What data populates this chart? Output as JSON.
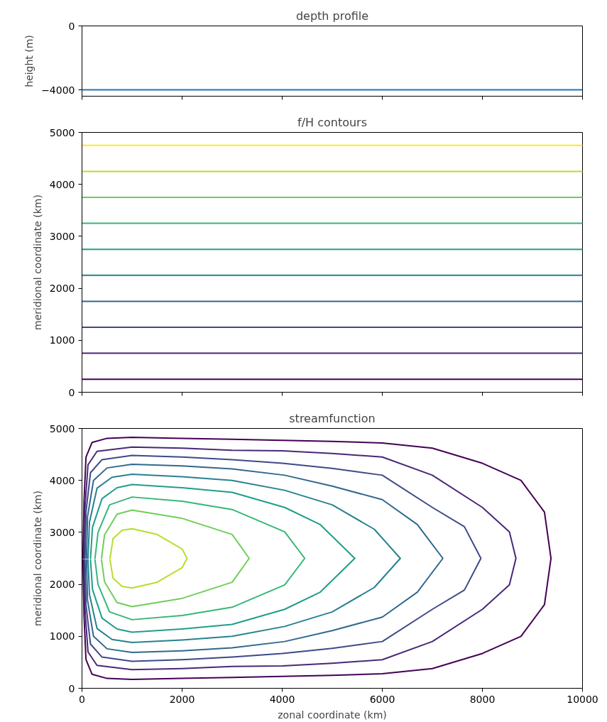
{
  "chart_data": [
    {
      "type": "line",
      "title": "depth profile",
      "ylabel": "height (m)",
      "xlim": [
        0,
        10000
      ],
      "ylim": [
        -4400,
        0
      ],
      "xticks": [
        0,
        2000,
        4000,
        6000,
        8000,
        10000
      ],
      "yticks": [
        0,
        {
          "value": -4000,
          "label": "−4000"
        }
      ],
      "tick_labels": "y",
      "ref_lines": [
        {
          "axis": "y",
          "value": -4000,
          "color": "#1f77b4"
        }
      ]
    },
    {
      "type": "line",
      "title": "f/H contours",
      "ylabel": "meridional coordinate (km)",
      "x": [
        0,
        10000
      ],
      "xlim": [
        0,
        10000
      ],
      "ylim": [
        0,
        5000
      ],
      "xticks": [
        0,
        2000,
        4000,
        6000,
        8000,
        10000
      ],
      "yticks": [
        0,
        1000,
        2000,
        3000,
        4000,
        5000
      ],
      "tick_labels": "y",
      "series": [
        {
          "color": "#440154",
          "values": [
            250,
            250
          ]
        },
        {
          "color": "#482878",
          "values": [
            750,
            750
          ]
        },
        {
          "color": "#3e4989",
          "values": [
            1250,
            1250
          ]
        },
        {
          "color": "#31688e",
          "values": [
            1750,
            1750
          ]
        },
        {
          "color": "#26828e",
          "values": [
            2250,
            2250
          ]
        },
        {
          "color": "#1f9e89",
          "values": [
            2750,
            2750
          ]
        },
        {
          "color": "#35b779",
          "values": [
            3250,
            3250
          ]
        },
        {
          "color": "#6ece58",
          "values": [
            3750,
            3750
          ]
        },
        {
          "color": "#b5de2b",
          "values": [
            4250,
            4250
          ]
        },
        {
          "color": "#fde725",
          "values": [
            4750,
            4750
          ]
        }
      ]
    },
    {
      "type": "line",
      "title": "streamfunction",
      "xlabel": "zonal coordinate (km)",
      "ylabel": "meridional coordinate (km)",
      "xlim": [
        0,
        10000
      ],
      "ylim": [
        0,
        5000
      ],
      "xticks": [
        0,
        2000,
        4000,
        6000,
        8000,
        10000
      ],
      "yticks": [
        0,
        1000,
        2000,
        3000,
        4000,
        5000
      ],
      "series": [
        {
          "color": "#440154",
          "x": [
            20,
            40,
            80,
            200,
            500,
            1000,
            2000,
            3000,
            4000,
            5000,
            6000,
            7000,
            8000,
            8770,
            9240,
            9370,
            9240,
            8770,
            8000,
            7000,
            6000,
            5000,
            4000,
            3000,
            2000,
            1000,
            500,
            200,
            80,
            40,
            20
          ],
          "values": [
            2500,
            3600,
            4450,
            4730,
            4810,
            4830,
            4810,
            4790,
            4770,
            4750,
            4720,
            4620,
            4330,
            4000,
            3390,
            2500,
            1610,
            1000,
            670,
            380,
            280,
            250,
            230,
            210,
            190,
            170,
            190,
            270,
            550,
            1400,
            2470
          ]
        },
        {
          "color": "#482878",
          "x": [
            40,
            60,
            120,
            300,
            1000,
            2000,
            3000,
            4000,
            5000,
            6000,
            7000,
            8000,
            8540,
            8670,
            8540,
            8000,
            7000,
            6000,
            5000,
            4000,
            3000,
            2000,
            1000,
            300,
            120,
            60,
            40
          ],
          "values": [
            2500,
            3500,
            4300,
            4560,
            4640,
            4620,
            4580,
            4570,
            4520,
            4450,
            4100,
            3480,
            3010,
            2500,
            1990,
            1520,
            900,
            550,
            480,
            430,
            420,
            380,
            360,
            440,
            700,
            1500,
            2470
          ]
        },
        {
          "color": "#3e4989",
          "x": [
            60,
            80,
            170,
            400,
            1000,
            2000,
            3000,
            4000,
            5000,
            6000,
            7000,
            7640,
            7970,
            7640,
            7000,
            6000,
            5000,
            4000,
            3000,
            2000,
            1000,
            400,
            170,
            80,
            60
          ],
          "values": [
            2500,
            3400,
            4150,
            4400,
            4480,
            4450,
            4400,
            4330,
            4230,
            4100,
            3480,
            3110,
            2500,
            1890,
            1520,
            900,
            770,
            670,
            600,
            550,
            520,
            600,
            850,
            1600,
            2470
          ]
        },
        {
          "color": "#31688e",
          "x": [
            90,
            110,
            230,
            500,
            1000,
            2000,
            3000,
            4050,
            5000,
            6000,
            6700,
            7210,
            6700,
            6000,
            5000,
            4050,
            3000,
            2000,
            1000,
            500,
            230,
            110,
            90
          ],
          "values": [
            2500,
            3300,
            4000,
            4240,
            4310,
            4280,
            4220,
            4100,
            3890,
            3630,
            3150,
            2500,
            1850,
            1370,
            1110,
            900,
            780,
            720,
            690,
            760,
            1000,
            1700,
            2470
          ]
        },
        {
          "color": "#26828e",
          "x": [
            120,
            150,
            300,
            600,
            1000,
            2000,
            3000,
            4050,
            5000,
            5840,
            6360,
            5840,
            5000,
            4050,
            3000,
            2000,
            1000,
            600,
            300,
            150,
            120
          ],
          "values": [
            2500,
            3200,
            3850,
            4060,
            4120,
            4070,
            4000,
            3810,
            3530,
            3060,
            2500,
            1940,
            1470,
            1190,
            1000,
            930,
            880,
            940,
            1150,
            1800,
            2470
          ]
        },
        {
          "color": "#1f9e89",
          "x": [
            170,
            210,
            400,
            700,
            1000,
            2000,
            3000,
            4050,
            4760,
            5450,
            4760,
            4050,
            3000,
            2000,
            1000,
            700,
            400,
            210,
            170
          ],
          "values": [
            2500,
            3100,
            3650,
            3860,
            3920,
            3860,
            3770,
            3480,
            3150,
            2500,
            1850,
            1520,
            1230,
            1140,
            1080,
            1140,
            1350,
            1900,
            2470
          ]
        },
        {
          "color": "#35b779",
          "x": [
            260,
            320,
            550,
            1000,
            2000,
            3000,
            4050,
            4450,
            4050,
            3000,
            2000,
            1000,
            550,
            320,
            260
          ],
          "values": [
            2500,
            3000,
            3530,
            3680,
            3600,
            3440,
            3010,
            2500,
            1990,
            1560,
            1400,
            1320,
            1470,
            2000,
            2470
          ]
        },
        {
          "color": "#6ece58",
          "x": [
            390,
            450,
            700,
            1000,
            2000,
            3000,
            3340,
            3000,
            2000,
            1000,
            700,
            450,
            390
          ],
          "values": [
            2500,
            2950,
            3350,
            3430,
            3270,
            2960,
            2500,
            2040,
            1730,
            1570,
            1650,
            2050,
            2470
          ]
        },
        {
          "color": "#b5de2b",
          "x": [
            560,
            620,
            800,
            1000,
            1500,
            2000,
            2100,
            2000,
            1500,
            1000,
            800,
            620,
            560
          ],
          "values": [
            2500,
            2880,
            3040,
            3070,
            2960,
            2680,
            2500,
            2320,
            2040,
            1930,
            1960,
            2120,
            2470
          ]
        }
      ]
    }
  ]
}
